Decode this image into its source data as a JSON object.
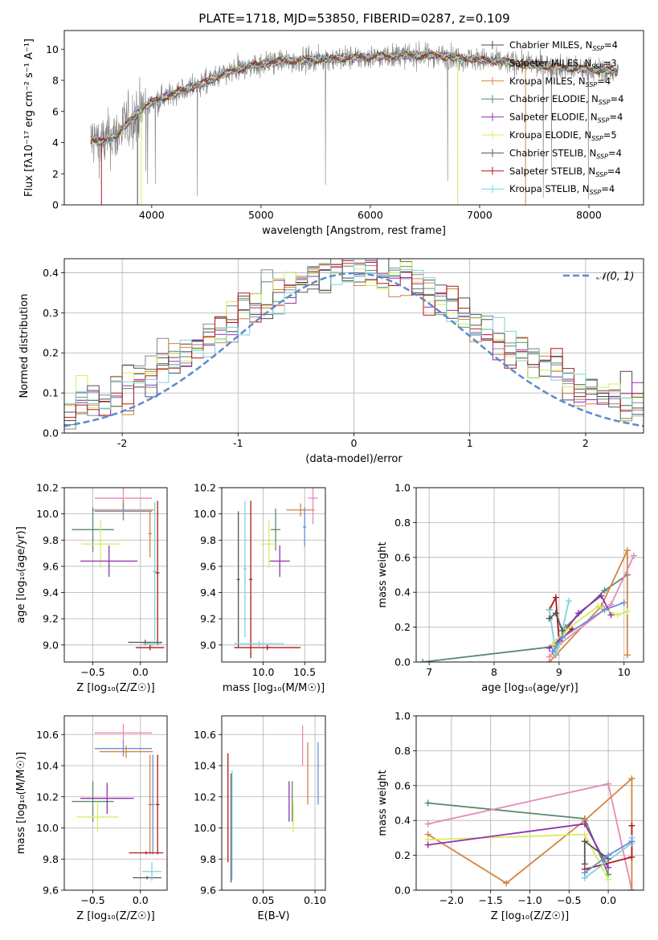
{
  "figure": {
    "title": "PLATE=1718, MJD=53850, FIBERID=0287, z=0.109"
  },
  "colors": {
    "chabrier_miles": "#4a4a4a",
    "salpeter_miles": "#888888",
    "kroupa_miles": "#d4843f",
    "chabrier_elodie": "#5a8a6a",
    "salpeter_elodie": "#9030b0",
    "kroupa_elodie": "#d8ec60",
    "chabrier_stelib": "#555555",
    "salpeter_stelib": "#b01818",
    "kroupa_stelib": "#7cd2d8",
    "pink": "#e888b8",
    "blue": "#6a8ed8",
    "normal": "#5b8ad0"
  },
  "chart_data": [
    {
      "id": "spectrum",
      "type": "line",
      "xlabel": "wavelength [Angstrom, rest frame]",
      "ylabel": "Flux [fλ10⁻¹⁷ erg cm⁻² s⁻¹ A⁻¹]",
      "xlim": [
        3200,
        8500
      ],
      "ylim": [
        0,
        11.2
      ],
      "xticks": [
        4000,
        5000,
        6000,
        7000,
        8000
      ],
      "yticks": [
        0,
        2,
        4,
        6,
        8,
        10
      ],
      "grid": false,
      "legend_position": "top-right",
      "data_x_range": [
        3440,
        8270
      ],
      "continuum_x": [
        3440,
        3550,
        3700,
        3800,
        3950,
        4100,
        4300,
        4500,
        4700,
        4900,
        5100,
        5400,
        5700,
        6000,
        6300,
        6600,
        6900,
        7200,
        7500,
        7800,
        8000,
        8270
      ],
      "continuum_y": [
        4.2,
        4.0,
        4.6,
        5.4,
        6.4,
        6.9,
        7.4,
        7.9,
        8.5,
        8.9,
        9.2,
        9.3,
        9.4,
        9.5,
        9.6,
        9.6,
        9.4,
        9.2,
        9.0,
        8.8,
        8.7,
        8.6
      ],
      "series": [
        {
          "name": "Chabrier MILES, N_SSP=4",
          "color_key": "chabrier_miles"
        },
        {
          "name": "Salpeter MILES, N_SSP=3",
          "color_key": "salpeter_miles"
        },
        {
          "name": "Kroupa MILES, N_SSP=4",
          "color_key": "kroupa_miles"
        },
        {
          "name": "Chabrier ELODIE, N_SSP=4",
          "color_key": "chabrier_elodie"
        },
        {
          "name": "Salpeter ELODIE, N_SSP=4",
          "color_key": "salpeter_elodie"
        },
        {
          "name": "Kroupa ELODIE, N_SSP=5",
          "color_key": "kroupa_elodie"
        },
        {
          "name": "Chabrier STELIB, N_SSP=4",
          "color_key": "chabrier_stelib"
        },
        {
          "name": "Salpeter STELIB, N_SSP=4",
          "color_key": "salpeter_stelib"
        },
        {
          "name": "Kroupa STELIB, N_SSP=4",
          "color_key": "kroupa_stelib"
        }
      ]
    },
    {
      "id": "residuals",
      "type": "histogram",
      "xlabel": "(data-model)/error",
      "ylabel": "Normed distribution",
      "xlim": [
        -2.5,
        2.5
      ],
      "ylim": [
        0,
        0.435
      ],
      "xticks": [
        -2,
        -1,
        0,
        1,
        2
      ],
      "yticks": [
        0.0,
        0.1,
        0.2,
        0.3,
        0.4
      ],
      "grid": true,
      "bin_width": 0.1,
      "legend_position": "top-right",
      "normal_label": "𝒩(0, 1)",
      "series_colors": [
        "chabrier_miles",
        "salpeter_miles",
        "kroupa_miles",
        "chabrier_elodie",
        "salpeter_elodie",
        "kroupa_elodie",
        "chabrier_stelib",
        "salpeter_stelib",
        "kroupa_stelib"
      ]
    },
    {
      "id": "age_vs_Z",
      "type": "errorbar",
      "xlabel": "Z [log₁₀(Z/Z☉)]",
      "ylabel": "age  [log₁₀(age/yr)]",
      "xlim": [
        -0.8,
        0.28
      ],
      "ylim": [
        8.87,
        10.2
      ],
      "xticks": [
        -0.5,
        0.0
      ],
      "xtick_labels": [
        "−0.5",
        "0.0"
      ],
      "yticks": [
        9.0,
        9.2,
        9.4,
        9.6,
        9.8,
        10.0,
        10.2
      ],
      "grid": true,
      "points": [
        {
          "x": -0.18,
          "y": 10.12,
          "xerr": 0.3,
          "yerr": 0.08,
          "color_key": "pink"
        },
        {
          "x": -0.18,
          "y": 10.03,
          "xerr": 0.32,
          "yerr": 0.08,
          "color_key": "kroupa_miles"
        },
        {
          "x": -0.18,
          "y": 10.02,
          "xerr": 0.3,
          "yerr": 0.06,
          "color_key": "blue"
        },
        {
          "x": -0.5,
          "y": 9.88,
          "xerr": 0.22,
          "yerr": 0.17,
          "color_key": "chabrier_elodie"
        },
        {
          "x": -0.42,
          "y": 9.77,
          "xerr": 0.2,
          "yerr": 0.18,
          "color_key": "kroupa_elodie"
        },
        {
          "x": -0.33,
          "y": 9.64,
          "xerr": 0.3,
          "yerr": 0.12,
          "color_key": "salpeter_elodie"
        },
        {
          "x": 0.1,
          "y": 9.85,
          "xerr": 0.02,
          "yerr": 0.18,
          "color_key": "kroupa_miles"
        },
        {
          "x": 0.18,
          "y": 9.55,
          "xerr": 0.02,
          "yerr": 0.55,
          "color_key": "salpeter_stelib"
        },
        {
          "x": 0.15,
          "y": 9.56,
          "xerr": 0.02,
          "yerr": 0.53,
          "color_key": "kroupa_stelib"
        },
        {
          "x": 0.05,
          "y": 9.02,
          "xerr": 0.18,
          "yerr": 0.02,
          "color_key": "chabrier_stelib"
        },
        {
          "x": 0.1,
          "y": 8.98,
          "xerr": 0.15,
          "yerr": 0.02,
          "color_key": "salpeter_stelib"
        },
        {
          "x": 0.12,
          "y": 9.01,
          "xerr": 0.1,
          "yerr": 0.02,
          "color_key": "kroupa_stelib"
        }
      ]
    },
    {
      "id": "age_vs_mass",
      "type": "errorbar",
      "xlabel": "mass [log₁₀(M/M☉)]",
      "ylabel": "",
      "xlim": [
        9.5,
        10.75
      ],
      "ylim": [
        8.87,
        10.2
      ],
      "xticks": [
        10.0,
        10.5
      ],
      "xtick_labels": [
        "10.0",
        "10.5"
      ],
      "yticks": [
        9.0,
        9.2,
        9.4,
        9.6,
        9.8,
        10.0,
        10.2
      ],
      "grid": true,
      "points": [
        {
          "x": 10.6,
          "y": 10.12,
          "xerr": 0.06,
          "yerr": 0.2,
          "color_key": "pink"
        },
        {
          "x": 10.45,
          "y": 10.03,
          "xerr": 0.17,
          "yerr": 0.05,
          "color_key": "kroupa_miles"
        },
        {
          "x": 10.5,
          "y": 9.9,
          "xerr": 0.02,
          "yerr": 0.15,
          "color_key": "blue"
        },
        {
          "x": 10.15,
          "y": 9.88,
          "xerr": 0.06,
          "yerr": 0.16,
          "color_key": "chabrier_elodie"
        },
        {
          "x": 10.07,
          "y": 9.77,
          "xerr": 0.1,
          "yerr": 0.18,
          "color_key": "kroupa_elodie"
        },
        {
          "x": 10.2,
          "y": 9.64,
          "xerr": 0.12,
          "yerr": 0.12,
          "color_key": "salpeter_elodie"
        },
        {
          "x": 9.7,
          "y": 9.5,
          "xerr": 0.02,
          "yerr": 0.52,
          "color_key": "chabrier_stelib"
        },
        {
          "x": 9.78,
          "y": 9.58,
          "xerr": 0.02,
          "yerr": 0.52,
          "color_key": "kroupa_stelib"
        },
        {
          "x": 9.85,
          "y": 9.5,
          "xerr": 0.02,
          "yerr": 0.6,
          "color_key": "salpeter_stelib"
        },
        {
          "x": 9.95,
          "y": 9.01,
          "xerr": 0.3,
          "yerr": 0.02,
          "color_key": "kroupa_stelib"
        },
        {
          "x": 10.05,
          "y": 8.98,
          "xerr": 0.4,
          "yerr": 0.02,
          "color_key": "salpeter_stelib"
        }
      ]
    },
    {
      "id": "weight_vs_age",
      "type": "line",
      "xlabel": "age  [log₁₀(age/yr)]",
      "ylabel": "mass weight",
      "xlim": [
        6.8,
        10.3
      ],
      "ylim": [
        0.0,
        1.0
      ],
      "xticks": [
        7,
        8,
        9,
        10
      ],
      "yticks": [
        0.0,
        0.2,
        0.4,
        0.6,
        0.8,
        1.0
      ],
      "grid": true,
      "series": [
        {
          "color_key": "chabrier_elodie",
          "x": [
            6.9,
            8.95,
            9.1,
            9.7,
            10.05
          ],
          "y": [
            0.0,
            0.09,
            0.2,
            0.41,
            0.5
          ]
        },
        {
          "color_key": "kroupa_miles",
          "x": [
            8.85,
            8.95,
            9.65,
            10.05,
            10.05
          ],
          "y": [
            0.0,
            0.04,
            0.32,
            0.64,
            0.04
          ]
        },
        {
          "color_key": "pink",
          "x": [
            8.85,
            9.0,
            9.8,
            10.15
          ],
          "y": [
            0.03,
            0.1,
            0.33,
            0.61
          ]
        },
        {
          "color_key": "salpeter_stelib",
          "x": [
            8.85,
            8.95,
            9.0,
            9.2
          ],
          "y": [
            0.3,
            0.37,
            0.12,
            0.19
          ]
        },
        {
          "color_key": "kroupa_stelib",
          "x": [
            8.85,
            8.95,
            9.0,
            9.15
          ],
          "y": [
            0.3,
            0.05,
            0.1,
            0.35
          ]
        },
        {
          "color_key": "salpeter_elodie",
          "x": [
            8.85,
            9.0,
            9.3,
            9.65,
            9.8
          ],
          "y": [
            0.08,
            0.13,
            0.28,
            0.38,
            0.27
          ]
        },
        {
          "color_key": "kroupa_elodie",
          "x": [
            8.9,
            9.1,
            9.6,
            9.9,
            10.05
          ],
          "y": [
            0.1,
            0.18,
            0.32,
            0.27,
            0.29
          ]
        },
        {
          "color_key": "chabrier_stelib",
          "x": [
            8.85,
            8.95,
            9.05
          ],
          "y": [
            0.25,
            0.28,
            0.18
          ]
        },
        {
          "color_key": "blue",
          "x": [
            8.9,
            9.05,
            9.7,
            10.0
          ],
          "y": [
            0.06,
            0.14,
            0.3,
            0.34
          ]
        }
      ]
    },
    {
      "id": "mass_vs_Z",
      "type": "errorbar",
      "xlabel": "Z [log₁₀(Z/Z☉)]",
      "ylabel": "mass [log₁₀(M/M☉)]",
      "xlim": [
        -0.8,
        0.28
      ],
      "ylim": [
        9.6,
        10.72
      ],
      "xticks": [
        -0.5,
        0.0
      ],
      "xtick_labels": [
        "−0.5",
        "0.0"
      ],
      "yticks": [
        9.6,
        9.8,
        10.0,
        10.2,
        10.4,
        10.6
      ],
      "grid": true,
      "points": [
        {
          "x": -0.18,
          "y": 10.61,
          "xerr": 0.3,
          "yerr": 0.06,
          "color_key": "pink"
        },
        {
          "x": -0.18,
          "y": 10.51,
          "xerr": 0.3,
          "yerr": 0.05,
          "color_key": "blue"
        },
        {
          "x": -0.15,
          "y": 10.49,
          "xerr": 0.28,
          "yerr": 0.04,
          "color_key": "kroupa_miles"
        },
        {
          "x": -0.5,
          "y": 10.17,
          "xerr": 0.22,
          "yerr": 0.13,
          "color_key": "chabrier_elodie"
        },
        {
          "x": -0.45,
          "y": 10.07,
          "xerr": 0.22,
          "yerr": 0.1,
          "color_key": "kroupa_elodie"
        },
        {
          "x": -0.35,
          "y": 10.19,
          "xerr": 0.28,
          "yerr": 0.1,
          "color_key": "salpeter_elodie"
        },
        {
          "x": 0.1,
          "y": 10.15,
          "xerr": 0.02,
          "yerr": 0.32,
          "color_key": "kroupa_miles"
        },
        {
          "x": 0.18,
          "y": 10.15,
          "xerr": 0.02,
          "yerr": 0.32,
          "color_key": "salpeter_stelib"
        },
        {
          "x": 0.13,
          "y": 10.15,
          "xerr": 0.02,
          "yerr": 0.32,
          "color_key": "blue"
        },
        {
          "x": 0.06,
          "y": 9.84,
          "xerr": 0.18,
          "yerr": 0.01,
          "color_key": "salpeter_stelib"
        },
        {
          "x": 0.07,
          "y": 9.68,
          "xerr": 0.15,
          "yerr": 0.01,
          "color_key": "chabrier_stelib"
        },
        {
          "x": 0.12,
          "y": 9.72,
          "xerr": 0.1,
          "yerr": 0.06,
          "color_key": "kroupa_stelib"
        }
      ]
    },
    {
      "id": "mass_vs_ebv",
      "type": "errorbar",
      "xlabel": "E(B-V)",
      "ylabel": "",
      "xlim": [
        0.01,
        0.11
      ],
      "ylim": [
        9.6,
        10.72
      ],
      "xticks": [
        0.05,
        0.1
      ],
      "xtick_labels": [
        "0.05",
        "0.10"
      ],
      "yticks": [
        9.6,
        9.8,
        10.0,
        10.2,
        10.4,
        10.6
      ],
      "grid": true,
      "points": [
        {
          "x": 0.016,
          "y": 10.13,
          "xerr": 0.0,
          "yerr": 0.35,
          "color_key": "salpeter_stelib"
        },
        {
          "x": 0.019,
          "y": 10.0,
          "xerr": 0.0,
          "yerr": 0.35,
          "color_key": "chabrier_stelib"
        },
        {
          "x": 0.02,
          "y": 10.02,
          "xerr": 0.0,
          "yerr": 0.35,
          "color_key": "kroupa_stelib"
        },
        {
          "x": 0.075,
          "y": 10.17,
          "xerr": 0.0,
          "yerr": 0.13,
          "color_key": "salpeter_elodie"
        },
        {
          "x": 0.078,
          "y": 10.17,
          "xerr": 0.0,
          "yerr": 0.13,
          "color_key": "chabrier_elodie"
        },
        {
          "x": 0.079,
          "y": 10.07,
          "xerr": 0.0,
          "yerr": 0.1,
          "color_key": "kroupa_elodie"
        },
        {
          "x": 0.088,
          "y": 10.53,
          "xerr": 0.0,
          "yerr": 0.13,
          "color_key": "pink"
        },
        {
          "x": 0.093,
          "y": 10.35,
          "xerr": 0.0,
          "yerr": 0.2,
          "color_key": "kroupa_miles"
        },
        {
          "x": 0.103,
          "y": 10.35,
          "xerr": 0.0,
          "yerr": 0.2,
          "color_key": "blue"
        }
      ]
    },
    {
      "id": "weight_vs_Z",
      "type": "line",
      "xlabel": "Z [log₁₀(Z/Z☉)]",
      "ylabel": "mass weight",
      "xlim": [
        -2.45,
        0.45
      ],
      "ylim": [
        0.0,
        1.0
      ],
      "xticks": [
        -2.0,
        -1.5,
        -1.0,
        -0.5,
        0.0
      ],
      "xtick_labels": [
        "−2.0",
        "−1.5",
        "−1.0",
        "−0.5",
        "0.0"
      ],
      "yticks": [
        0.0,
        0.2,
        0.4,
        0.6,
        0.8,
        1.0
      ],
      "grid": true,
      "series": [
        {
          "color_key": "chabrier_elodie",
          "x": [
            -2.3,
            -0.3,
            0.0
          ],
          "y": [
            0.5,
            0.41,
            0.09
          ]
        },
        {
          "color_key": "pink",
          "x": [
            -2.3,
            0.0,
            0.3
          ],
          "y": [
            0.38,
            0.61,
            0.0
          ]
        },
        {
          "color_key": "kroupa_miles",
          "x": [
            -2.3,
            -1.3,
            -0.3,
            0.3,
            0.3
          ],
          "y": [
            0.32,
            0.04,
            0.4,
            0.64,
            0.0
          ]
        },
        {
          "color_key": "kroupa_elodie",
          "x": [
            -2.3,
            -0.3,
            0.0
          ],
          "y": [
            0.29,
            0.32,
            0.06
          ]
        },
        {
          "color_key": "salpeter_elodie",
          "x": [
            -2.3,
            -0.3,
            0.0
          ],
          "y": [
            0.26,
            0.38,
            0.13
          ]
        },
        {
          "color_key": "salpeter_stelib",
          "x": [
            -0.3,
            0.3,
            0.3
          ],
          "y": [
            0.12,
            0.19,
            0.37
          ]
        },
        {
          "color_key": "kroupa_stelib",
          "x": [
            -0.3,
            0.3,
            0.3
          ],
          "y": [
            0.07,
            0.27,
            0.3
          ]
        },
        {
          "color_key": "chabrier_stelib",
          "x": [
            -0.3,
            -0.3,
            0.0
          ],
          "y": [
            0.15,
            0.28,
            0.18
          ]
        },
        {
          "color_key": "blue",
          "x": [
            -0.3,
            0.0,
            0.3
          ],
          "y": [
            0.1,
            0.2,
            0.28
          ]
        }
      ]
    }
  ]
}
